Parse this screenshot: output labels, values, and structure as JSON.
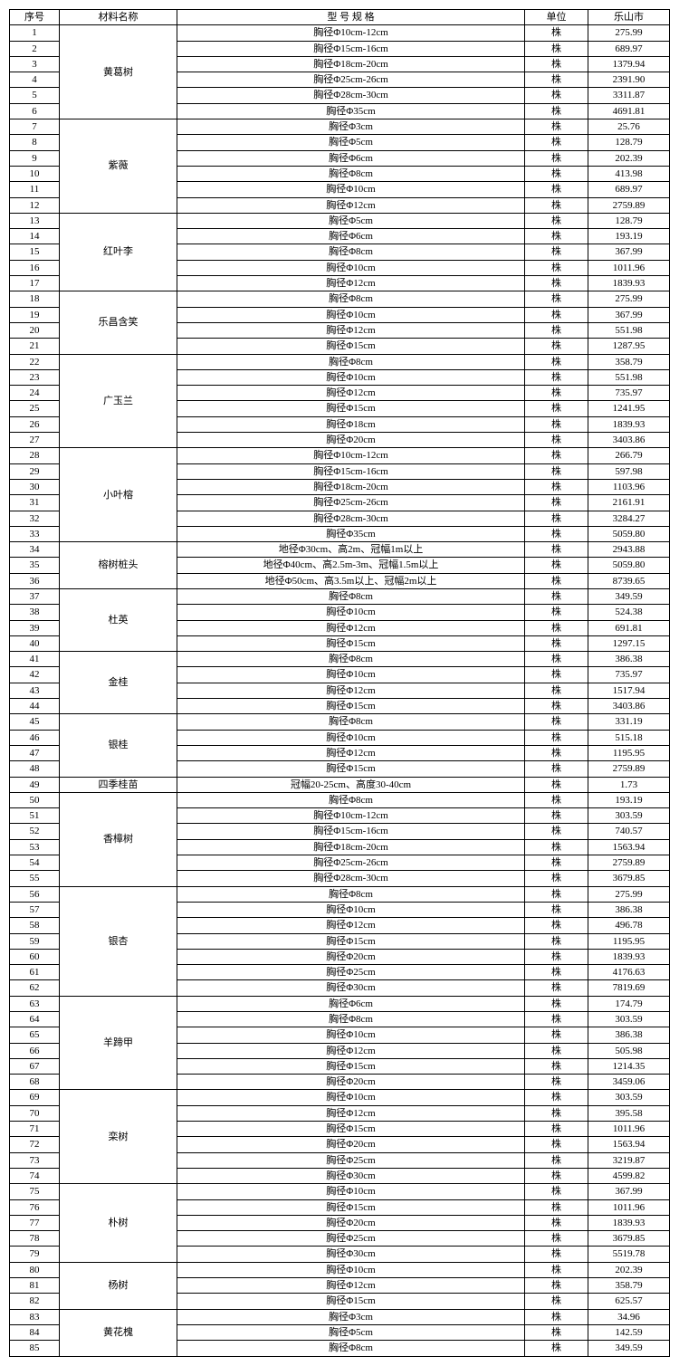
{
  "headers": {
    "seq": "序号",
    "name": "材料名称",
    "spec": "型 号 规 格",
    "unit": "单位",
    "price": "乐山市"
  },
  "colors": {
    "bg": "#ffffff",
    "border": "#000000",
    "text": "#000000"
  },
  "typography": {
    "font_family": "SimSun",
    "font_size_pt": 8
  },
  "groups": [
    {
      "name": "黄葛树",
      "rows": [
        {
          "seq": 1,
          "spec": "胸径Φ10cm-12cm",
          "unit": "株",
          "price": "275.99"
        },
        {
          "seq": 2,
          "spec": "胸径Φ15cm-16cm",
          "unit": "株",
          "price": "689.97"
        },
        {
          "seq": 3,
          "spec": "胸径Φ18cm-20cm",
          "unit": "株",
          "price": "1379.94"
        },
        {
          "seq": 4,
          "spec": "胸径Φ25cm-26cm",
          "unit": "株",
          "price": "2391.90"
        },
        {
          "seq": 5,
          "spec": "胸径Φ28cm-30cm",
          "unit": "株",
          "price": "3311.87"
        },
        {
          "seq": 6,
          "spec": "胸径Φ35cm",
          "unit": "株",
          "price": "4691.81"
        }
      ]
    },
    {
      "name": "紫薇",
      "rows": [
        {
          "seq": 7,
          "spec": "胸径Φ3cm",
          "unit": "株",
          "price": "25.76"
        },
        {
          "seq": 8,
          "spec": "胸径Φ5cm",
          "unit": "株",
          "price": "128.79"
        },
        {
          "seq": 9,
          "spec": "胸径Φ6cm",
          "unit": "株",
          "price": "202.39"
        },
        {
          "seq": 10,
          "spec": "胸径Φ8cm",
          "unit": "株",
          "price": "413.98"
        },
        {
          "seq": 11,
          "spec": "胸径Φ10cm",
          "unit": "株",
          "price": "689.97"
        },
        {
          "seq": 12,
          "spec": "胸径Φ12cm",
          "unit": "株",
          "price": "2759.89"
        }
      ]
    },
    {
      "name": "红叶李",
      "rows": [
        {
          "seq": 13,
          "spec": "胸径Φ5cm",
          "unit": "株",
          "price": "128.79"
        },
        {
          "seq": 14,
          "spec": "胸径Φ6cm",
          "unit": "株",
          "price": "193.19"
        },
        {
          "seq": 15,
          "spec": "胸径Φ8cm",
          "unit": "株",
          "price": "367.99"
        },
        {
          "seq": 16,
          "spec": "胸径Φ10cm",
          "unit": "株",
          "price": "1011.96"
        },
        {
          "seq": 17,
          "spec": "胸径Φ12cm",
          "unit": "株",
          "price": "1839.93"
        }
      ]
    },
    {
      "name": "乐昌含笑",
      "rows": [
        {
          "seq": 18,
          "spec": "胸径Φ8cm",
          "unit": "株",
          "price": "275.99"
        },
        {
          "seq": 19,
          "spec": "胸径Φ10cm",
          "unit": "株",
          "price": "367.99"
        },
        {
          "seq": 20,
          "spec": "胸径Φ12cm",
          "unit": "株",
          "price": "551.98"
        },
        {
          "seq": 21,
          "spec": "胸径Φ15cm",
          "unit": "株",
          "price": "1287.95"
        }
      ]
    },
    {
      "name": "广玉兰",
      "rows": [
        {
          "seq": 22,
          "spec": "胸径Φ8cm",
          "unit": "株",
          "price": "358.79"
        },
        {
          "seq": 23,
          "spec": "胸径Φ10cm",
          "unit": "株",
          "price": "551.98"
        },
        {
          "seq": 24,
          "spec": "胸径Φ12cm",
          "unit": "株",
          "price": "735.97"
        },
        {
          "seq": 25,
          "spec": "胸径Φ15cm",
          "unit": "株",
          "price": "1241.95"
        },
        {
          "seq": 26,
          "spec": "胸径Φ18cm",
          "unit": "株",
          "price": "1839.93"
        },
        {
          "seq": 27,
          "spec": "胸径Φ20cm",
          "unit": "株",
          "price": "3403.86"
        }
      ]
    },
    {
      "name": "小叶榕",
      "rows": [
        {
          "seq": 28,
          "spec": "胸径Φ10cm-12cm",
          "unit": "株",
          "price": "266.79"
        },
        {
          "seq": 29,
          "spec": "胸径Φ15cm-16cm",
          "unit": "株",
          "price": "597.98"
        },
        {
          "seq": 30,
          "spec": "胸径Φ18cm-20cm",
          "unit": "株",
          "price": "1103.96"
        },
        {
          "seq": 31,
          "spec": "胸径Φ25cm-26cm",
          "unit": "株",
          "price": "2161.91"
        },
        {
          "seq": 32,
          "spec": "胸径Φ28cm-30cm",
          "unit": "株",
          "price": "3284.27"
        },
        {
          "seq": 33,
          "spec": "胸径Φ35cm",
          "unit": "株",
          "price": "5059.80"
        }
      ]
    },
    {
      "name": "榕树桩头",
      "rows": [
        {
          "seq": 34,
          "spec": "地径Φ30cm、高2m、冠幅1m以上",
          "unit": "株",
          "price": "2943.88"
        },
        {
          "seq": 35,
          "spec": "地径Φ40cm、高2.5m-3m、冠幅1.5m以上",
          "unit": "株",
          "price": "5059.80"
        },
        {
          "seq": 36,
          "spec": "地径Φ50cm、高3.5m以上、冠幅2m以上",
          "unit": "株",
          "price": "8739.65"
        }
      ]
    },
    {
      "name": "杜英",
      "rows": [
        {
          "seq": 37,
          "spec": "胸径Φ8cm",
          "unit": "株",
          "price": "349.59"
        },
        {
          "seq": 38,
          "spec": "胸径Φ10cm",
          "unit": "株",
          "price": "524.38"
        },
        {
          "seq": 39,
          "spec": "胸径Φ12cm",
          "unit": "株",
          "price": "691.81"
        },
        {
          "seq": 40,
          "spec": "胸径Φ15cm",
          "unit": "株",
          "price": "1297.15"
        }
      ]
    },
    {
      "name": "金桂",
      "rows": [
        {
          "seq": 41,
          "spec": "胸径Φ8cm",
          "unit": "株",
          "price": "386.38"
        },
        {
          "seq": 42,
          "spec": "胸径Φ10cm",
          "unit": "株",
          "price": "735.97"
        },
        {
          "seq": 43,
          "spec": "胸径Φ12cm",
          "unit": "株",
          "price": "1517.94"
        },
        {
          "seq": 44,
          "spec": "胸径Φ15cm",
          "unit": "株",
          "price": "3403.86"
        }
      ]
    },
    {
      "name": "银桂",
      "rows": [
        {
          "seq": 45,
          "spec": "胸径Φ8cm",
          "unit": "株",
          "price": "331.19"
        },
        {
          "seq": 46,
          "spec": "胸径Φ10cm",
          "unit": "株",
          "price": "515.18"
        },
        {
          "seq": 47,
          "spec": "胸径Φ12cm",
          "unit": "株",
          "price": "1195.95"
        },
        {
          "seq": 48,
          "spec": "胸径Φ15cm",
          "unit": "株",
          "price": "2759.89"
        }
      ]
    },
    {
      "name": "四季桂苗",
      "rows": [
        {
          "seq": 49,
          "spec": "冠幅20-25cm、高度30-40cm",
          "unit": "株",
          "price": "1.73"
        }
      ]
    },
    {
      "name": "香樟树",
      "rows": [
        {
          "seq": 50,
          "spec": "胸径Φ8cm",
          "unit": "株",
          "price": "193.19"
        },
        {
          "seq": 51,
          "spec": "胸径Φ10cm-12cm",
          "unit": "株",
          "price": "303.59"
        },
        {
          "seq": 52,
          "spec": "胸径Φ15cm-16cm",
          "unit": "株",
          "price": "740.57"
        },
        {
          "seq": 53,
          "spec": "胸径Φ18cm-20cm",
          "unit": "株",
          "price": "1563.94"
        },
        {
          "seq": 54,
          "spec": "胸径Φ25cm-26cm",
          "unit": "株",
          "price": "2759.89"
        },
        {
          "seq": 55,
          "spec": "胸径Φ28cm-30cm",
          "unit": "株",
          "price": "3679.85"
        }
      ]
    },
    {
      "name": "银杏",
      "rows": [
        {
          "seq": 56,
          "spec": "胸径Φ8cm",
          "unit": "株",
          "price": "275.99"
        },
        {
          "seq": 57,
          "spec": "胸径Φ10cm",
          "unit": "株",
          "price": "386.38"
        },
        {
          "seq": 58,
          "spec": "胸径Φ12cm",
          "unit": "株",
          "price": "496.78"
        },
        {
          "seq": 59,
          "spec": "胸径Φ15cm",
          "unit": "株",
          "price": "1195.95"
        },
        {
          "seq": 60,
          "spec": "胸径Φ20cm",
          "unit": "株",
          "price": "1839.93"
        },
        {
          "seq": 61,
          "spec": "胸径Φ25cm",
          "unit": "株",
          "price": "4176.63"
        },
        {
          "seq": 62,
          "spec": "胸径Φ30cm",
          "unit": "株",
          "price": "7819.69"
        }
      ]
    },
    {
      "name": "羊蹄甲",
      "rows": [
        {
          "seq": 63,
          "spec": "胸径Φ6cm",
          "unit": "株",
          "price": "174.79"
        },
        {
          "seq": 64,
          "spec": "胸径Φ8cm",
          "unit": "株",
          "price": "303.59"
        },
        {
          "seq": 65,
          "spec": "胸径Φ10cm",
          "unit": "株",
          "price": "386.38"
        },
        {
          "seq": 66,
          "spec": "胸径Φ12cm",
          "unit": "株",
          "price": "505.98"
        },
        {
          "seq": 67,
          "spec": "胸径Φ15cm",
          "unit": "株",
          "price": "1214.35"
        },
        {
          "seq": 68,
          "spec": "胸径Φ20cm",
          "unit": "株",
          "price": "3459.06"
        }
      ]
    },
    {
      "name": "栾树",
      "rows": [
        {
          "seq": 69,
          "spec": "胸径Φ10cm",
          "unit": "株",
          "price": "303.59"
        },
        {
          "seq": 70,
          "spec": "胸径Φ12cm",
          "unit": "株",
          "price": "395.58"
        },
        {
          "seq": 71,
          "spec": "胸径Φ15cm",
          "unit": "株",
          "price": "1011.96"
        },
        {
          "seq": 72,
          "spec": "胸径Φ20cm",
          "unit": "株",
          "price": "1563.94"
        },
        {
          "seq": 73,
          "spec": "胸径Φ25cm",
          "unit": "株",
          "price": "3219.87"
        },
        {
          "seq": 74,
          "spec": "胸径Φ30cm",
          "unit": "株",
          "price": "4599.82"
        }
      ]
    },
    {
      "name": "朴树",
      "rows": [
        {
          "seq": 75,
          "spec": "胸径Φ10cm",
          "unit": "株",
          "price": "367.99"
        },
        {
          "seq": 76,
          "spec": "胸径Φ15cm",
          "unit": "株",
          "price": "1011.96"
        },
        {
          "seq": 77,
          "spec": "胸径Φ20cm",
          "unit": "株",
          "price": "1839.93"
        },
        {
          "seq": 78,
          "spec": "胸径Φ25cm",
          "unit": "株",
          "price": "3679.85"
        },
        {
          "seq": 79,
          "spec": "胸径Φ30cm",
          "unit": "株",
          "price": "5519.78"
        }
      ]
    },
    {
      "name": "杨树",
      "rows": [
        {
          "seq": 80,
          "spec": "胸径Φ10cm",
          "unit": "株",
          "price": "202.39"
        },
        {
          "seq": 81,
          "spec": "胸径Φ12cm",
          "unit": "株",
          "price": "358.79"
        },
        {
          "seq": 82,
          "spec": "胸径Φ15cm",
          "unit": "株",
          "price": "625.57"
        }
      ]
    },
    {
      "name": "黄花槐",
      "rows": [
        {
          "seq": 83,
          "spec": "胸径Φ3cm",
          "unit": "株",
          "price": "34.96"
        },
        {
          "seq": 84,
          "spec": "胸径Φ5cm",
          "unit": "株",
          "price": "142.59"
        },
        {
          "seq": 85,
          "spec": "胸径Φ8cm",
          "unit": "株",
          "price": "349.59"
        }
      ]
    }
  ]
}
